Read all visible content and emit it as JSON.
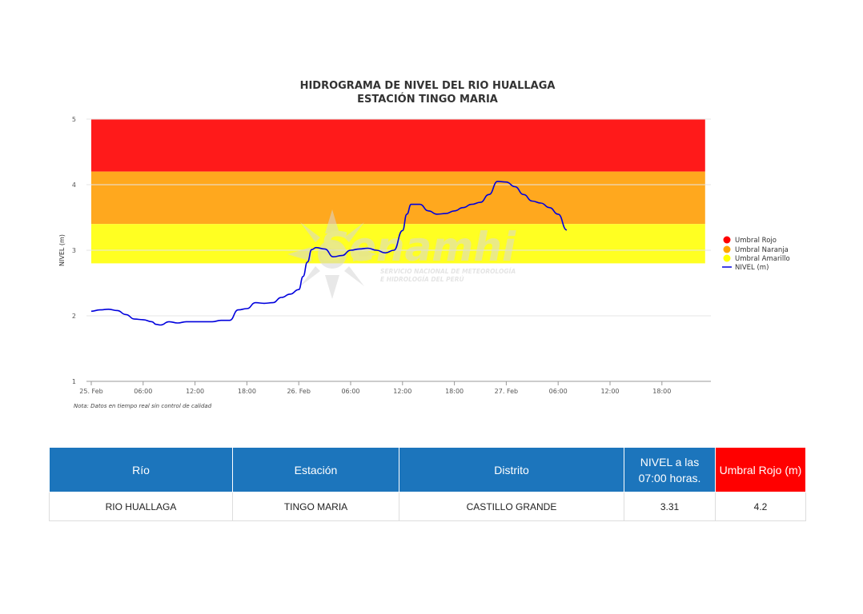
{
  "chart_data": {
    "type": "line",
    "title": "HIDROGRAMA DE NIVEL DEL RIO HUALLAGA",
    "subtitle": "ESTACIÓN TINGO MARIA",
    "ylabel": "NIVEL (m)",
    "ylim": [
      1,
      5
    ],
    "yticks": [
      1,
      2,
      3,
      4,
      5
    ],
    "xlim": [
      0,
      60
    ],
    "xticks": [
      {
        "x": 0,
        "label": "25. Feb"
      },
      {
        "x": 6,
        "label": "06:00"
      },
      {
        "x": 12,
        "label": "12:00"
      },
      {
        "x": 18,
        "label": "18:00"
      },
      {
        "x": 24,
        "label": "26. Feb"
      },
      {
        "x": 30,
        "label": "06:00"
      },
      {
        "x": 36,
        "label": "12:00"
      },
      {
        "x": 42,
        "label": "18:00"
      },
      {
        "x": 48,
        "label": "27. Feb"
      },
      {
        "x": 54,
        "label": "06:00"
      },
      {
        "x": 60,
        "label": "12:00"
      },
      {
        "x": 66,
        "label": "18:00"
      }
    ],
    "xmax_axis": 72,
    "bands": [
      {
        "name": "Umbral Rojo",
        "from": 4.2,
        "to": 5.0,
        "color": "#ff1a1a"
      },
      {
        "name": "Umbral Naranja",
        "from": 3.4,
        "to": 4.2,
        "color": "#ffa81e"
      },
      {
        "name": "Umbral Amarillo",
        "from": 2.8,
        "to": 3.4,
        "color": "#ffff22"
      }
    ],
    "band_x_end": 71,
    "series": [
      {
        "name": "NIVEL (m)",
        "color": "#0000dd",
        "x": [
          0,
          1,
          2,
          3,
          4,
          5,
          6,
          7,
          7.5,
          8,
          9,
          10,
          11,
          12,
          13,
          14,
          15,
          16,
          17,
          18,
          19,
          20,
          21,
          22,
          23,
          24,
          24.5,
          25,
          25.5,
          26,
          27,
          28,
          29,
          30,
          31,
          32,
          33,
          34,
          35,
          36,
          36.5,
          37,
          38,
          39,
          40,
          41,
          42,
          43,
          44,
          45,
          46,
          47,
          48,
          49,
          50,
          51,
          52,
          53,
          54,
          55
        ],
        "y": [
          2.07,
          2.09,
          2.1,
          2.08,
          2.02,
          1.95,
          1.94,
          1.91,
          1.87,
          1.86,
          1.91,
          1.89,
          1.91,
          1.91,
          1.91,
          1.91,
          1.93,
          1.93,
          2.09,
          2.11,
          2.2,
          2.19,
          2.2,
          2.28,
          2.33,
          2.4,
          2.6,
          2.82,
          3.01,
          3.04,
          3.02,
          2.9,
          2.92,
          3.0,
          3.02,
          3.03,
          3.0,
          2.96,
          3.0,
          3.3,
          3.55,
          3.7,
          3.7,
          3.6,
          3.55,
          3.56,
          3.6,
          3.65,
          3.7,
          3.73,
          3.85,
          4.05,
          4.04,
          3.97,
          3.85,
          3.75,
          3.72,
          3.65,
          3.55,
          3.31
        ]
      }
    ],
    "legend": [
      "Umbral Rojo",
      "Umbral Naranja",
      "Umbral Amarillo",
      "NIVEL (m)"
    ],
    "legend_position": "right",
    "note": "Nota: Datos en tiempo real sin control de calidad",
    "grid": true
  },
  "watermark": {
    "brand": "Senamhi",
    "line1": "SERVICIO NACIONAL DE METEOROLOGÍA",
    "line2": "E HIDROLOGÍA DEL PERÚ"
  },
  "table": {
    "headers": {
      "rio": "Río",
      "estacion": "Estación",
      "distrito": "Distrito",
      "nivel_line1": "NIVEL a las",
      "nivel_line2": "07:00 horas.",
      "umbral": "Umbral Rojo (m)"
    },
    "row": {
      "rio": "RIO HUALLAGA",
      "estacion": "TINGO MARIA",
      "distrito": "CASTILLO GRANDE",
      "nivel": "3.31",
      "umbral": "4.2"
    }
  }
}
